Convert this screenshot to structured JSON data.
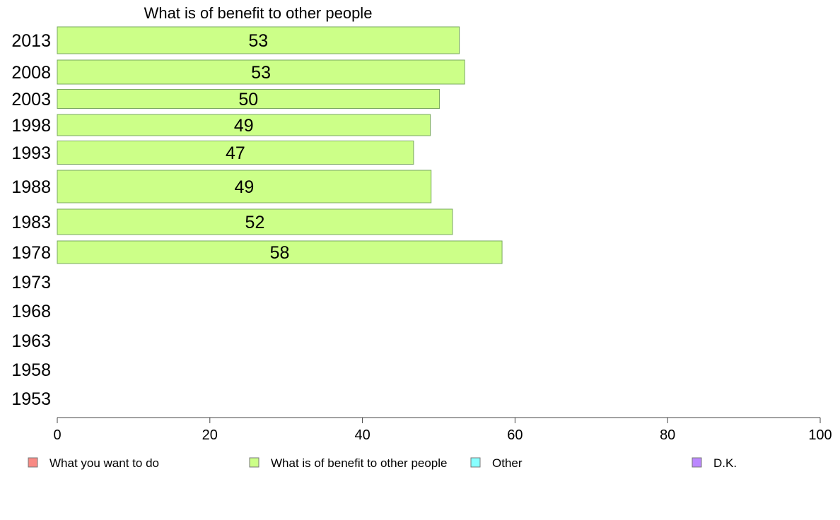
{
  "chart_data": {
    "type": "bar",
    "orientation": "horizontal",
    "title": "What is of benefit to other people",
    "xlabel": "",
    "ylabel": "",
    "xlim": [
      0,
      100
    ],
    "x_ticks": [
      0,
      20,
      40,
      60,
      80,
      100
    ],
    "grid": false,
    "legend_position": "bottom",
    "categories": [
      "2013",
      "2008",
      "2003",
      "1998",
      "1993",
      "1988",
      "1983",
      "1978",
      "1973",
      "1968",
      "1963",
      "1958",
      "1953"
    ],
    "series": [
      {
        "name": "What is of benefit to other people",
        "color": "#ccff88",
        "values": [
          52.7,
          53.4,
          50.1,
          48.9,
          46.7,
          49.0,
          51.8,
          58.3,
          null,
          null,
          null,
          null,
          null
        ],
        "labels": [
          "53",
          "53",
          "50",
          "49",
          "47",
          "49",
          "52",
          "58",
          "",
          "",
          "",
          "",
          ""
        ]
      }
    ],
    "legend": [
      {
        "label": "What you want to do",
        "color": "#f88a84"
      },
      {
        "label": "What is of benefit to other people",
        "color": "#ccff88"
      },
      {
        "label": "Other",
        "color": "#88ffff"
      },
      {
        "label": "D.K.",
        "color": "#bb88ff"
      }
    ]
  }
}
